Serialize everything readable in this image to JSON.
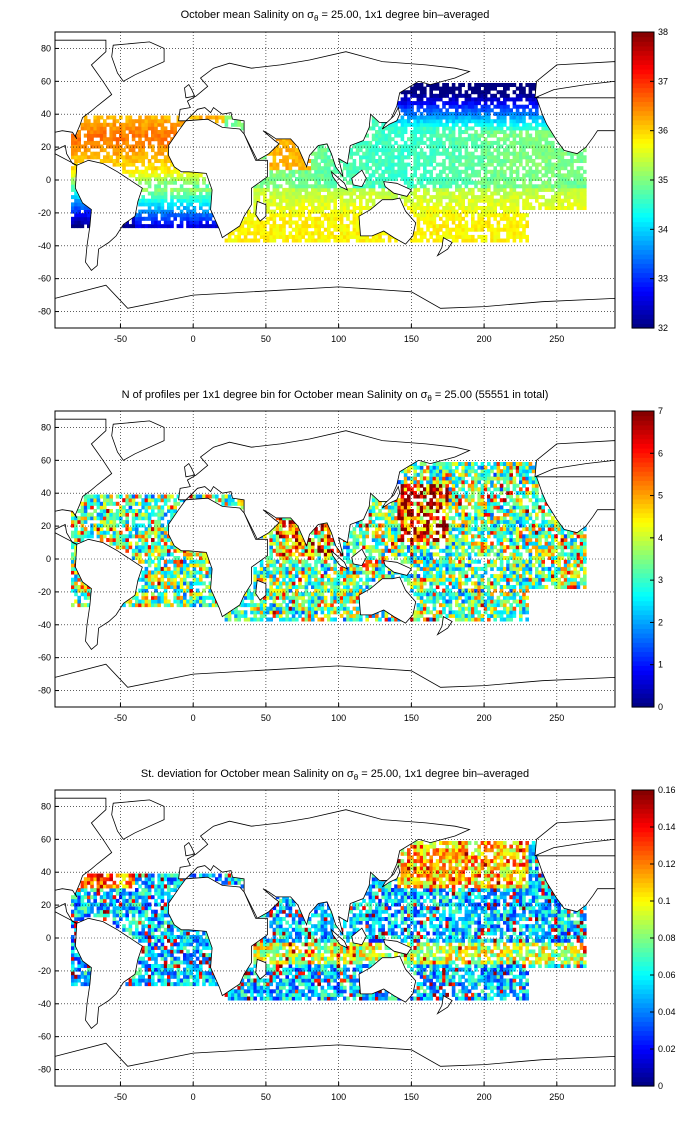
{
  "colors": {
    "background": "#ffffff",
    "frame": "#000000",
    "gridline": "#000000",
    "coastline": "#000000",
    "colormap": "jet"
  },
  "chart_data": [
    {
      "type": "heatmap",
      "title_main": "October mean Salinity on σ",
      "title_sub": "θ",
      "title_rest": " = 25.00, 1x1 degree bin–averaged",
      "x_ticks": [
        "-50",
        "0",
        "50",
        "100",
        "150",
        "200",
        "250"
      ],
      "y_ticks": [
        "80",
        "60",
        "40",
        "20",
        "0",
        "-20",
        "-40",
        "-60",
        "-80"
      ],
      "xlim": [
        -95,
        290
      ],
      "ylim": [
        -90,
        90
      ],
      "grid": true,
      "colorbar": {
        "range": [
          32,
          38
        ],
        "ticks": [
          "38",
          "37",
          "36",
          "35",
          "34",
          "33",
          "32"
        ]
      },
      "field": "salinity"
    },
    {
      "type": "heatmap",
      "title_main": "N of profiles per 1x1 degree bin for October mean Salinity on σ",
      "title_sub": "θ",
      "title_rest": " = 25.00 (55551 in total)",
      "x_ticks": [
        "-50",
        "0",
        "50",
        "100",
        "150",
        "200",
        "250"
      ],
      "y_ticks": [
        "80",
        "60",
        "40",
        "20",
        "0",
        "-20",
        "-40",
        "-60",
        "-80"
      ],
      "xlim": [
        -95,
        290
      ],
      "ylim": [
        -90,
        90
      ],
      "grid": true,
      "colorbar": {
        "range": [
          0,
          7
        ],
        "ticks": [
          "7",
          "6",
          "5",
          "4",
          "3",
          "2",
          "1",
          "0"
        ]
      },
      "field": "count"
    },
    {
      "type": "heatmap",
      "title_main": "St. deviation for October mean Salinity on σ",
      "title_sub": "θ",
      "title_rest": " = 25.00, 1x1 degree bin–averaged",
      "x_ticks": [
        "-50",
        "0",
        "50",
        "100",
        "150",
        "200",
        "250"
      ],
      "y_ticks": [
        "80",
        "60",
        "40",
        "20",
        "0",
        "-20",
        "-40",
        "-60",
        "-80"
      ],
      "xlim": [
        -95,
        290
      ],
      "ylim": [
        -90,
        90
      ],
      "grid": true,
      "colorbar": {
        "range": [
          0,
          0.16
        ],
        "ticks": [
          "0.16",
          "0.14",
          "0.12",
          "0.1",
          "0.08",
          "0.06",
          "0.04",
          "0.02",
          "0"
        ]
      },
      "field": "stdev"
    }
  ]
}
